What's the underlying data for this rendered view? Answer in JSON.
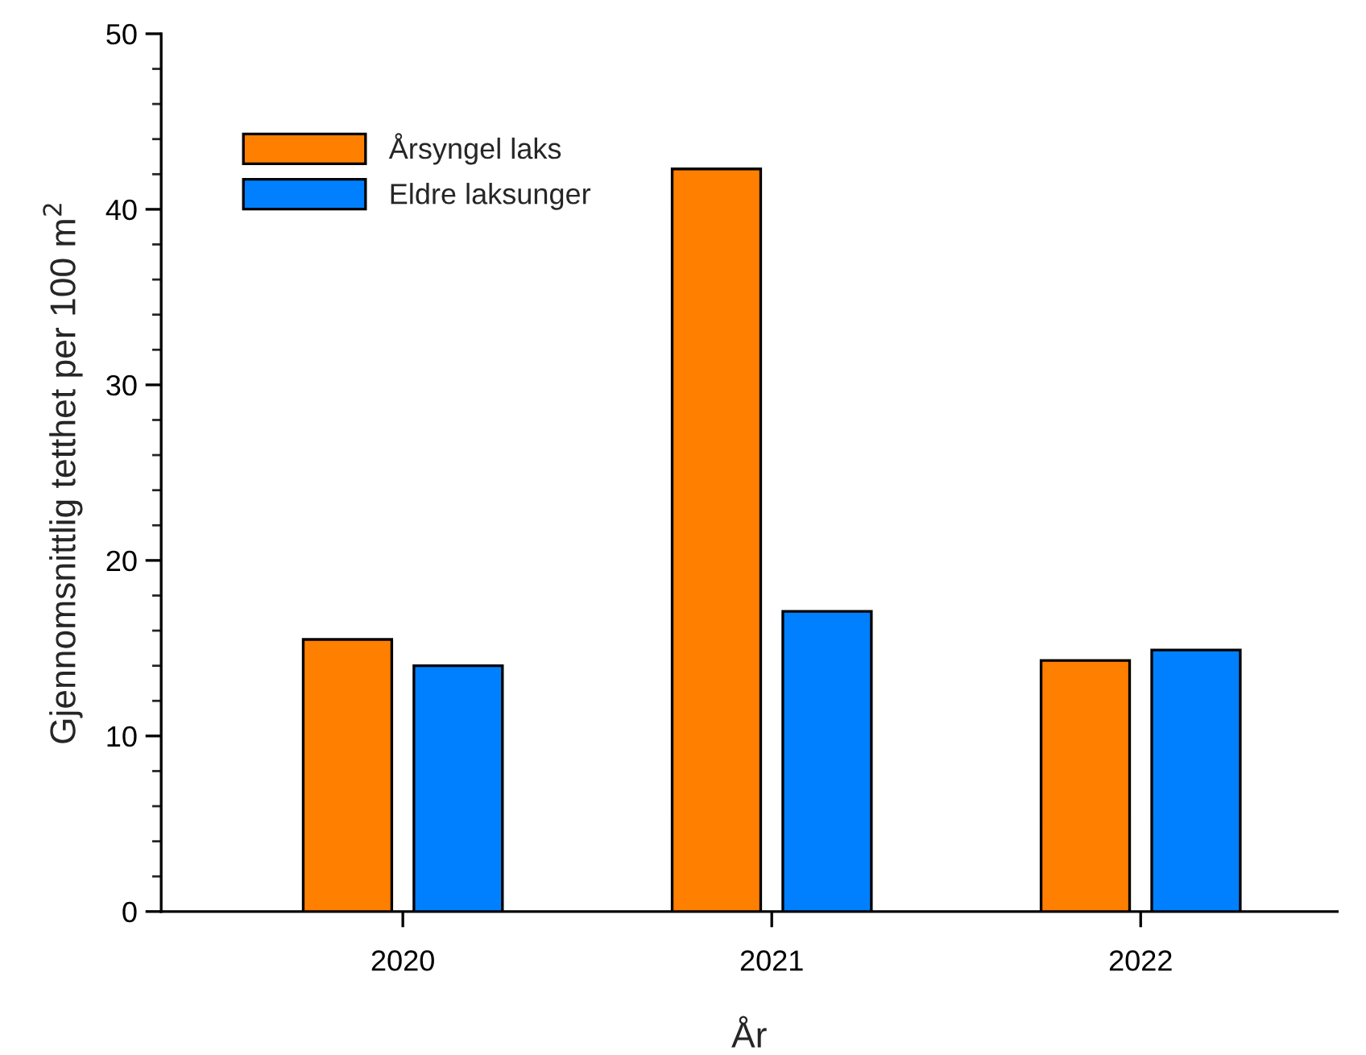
{
  "chart_data": {
    "type": "bar",
    "xlabel": "År",
    "ylabel": "Gjennomsnittlig tetthet per 100 m$^{2}$",
    "categories": [
      "2020",
      "2021",
      "2022"
    ],
    "series": [
      {
        "name": "Årsyngel laks",
        "color": "#ff7f00",
        "values": [
          15.5,
          42.3,
          14.3
        ]
      },
      {
        "name": "Eldre laksunger",
        "color": "#0080ff",
        "values": [
          14.0,
          17.1,
          14.9
        ]
      }
    ],
    "ylim": [
      0,
      50
    ],
    "yticks": [
      0,
      10,
      20,
      30,
      40,
      50
    ],
    "grid": false,
    "legend": "top left"
  }
}
